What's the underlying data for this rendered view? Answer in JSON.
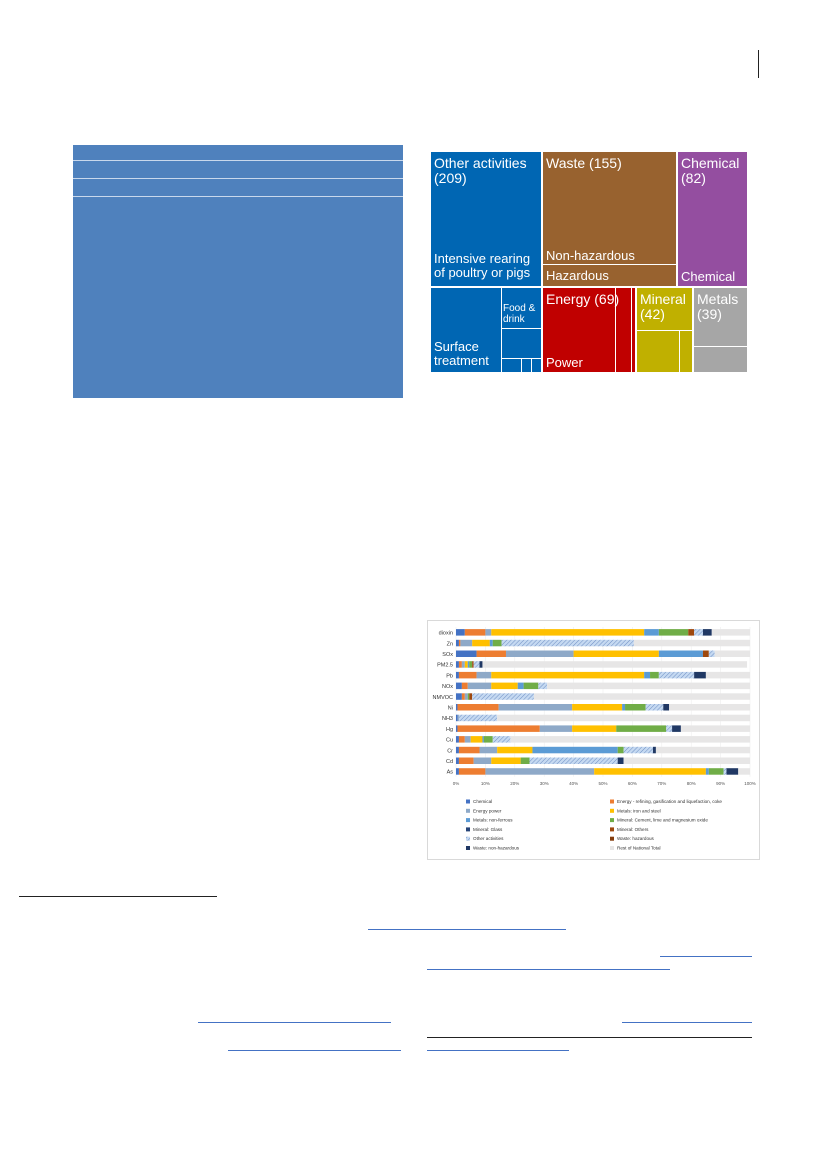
{
  "treemap": {
    "tiles": [
      {
        "id": "other",
        "title": "Other activities\n(209)",
        "sub": "Intensive rearing\nof poultry or pigs",
        "color": "#0066b3"
      },
      {
        "id": "waste",
        "title": "Waste (155)",
        "sub1": "Non-hazardous",
        "sub2": "Hazardous",
        "color": "#98622f"
      },
      {
        "id": "chemical",
        "title": "Chemical\n(82)",
        "sub": "Chemical",
        "color": "#944ea0"
      },
      {
        "id": "surface",
        "title": "",
        "sub": "Surface\ntreatment",
        "food": "Food &\ndrink",
        "color": "#0066b3"
      },
      {
        "id": "energy",
        "title": "Energy (69)",
        "sub": "Power",
        "color": "#c00000"
      },
      {
        "id": "mineral",
        "title": "Mineral\n(42)",
        "color": "#c0b000"
      },
      {
        "id": "metals",
        "title": "Metals\n(39)",
        "color": "#a6a6a6"
      }
    ]
  },
  "chart_data": {
    "type": "bar",
    "orientation": "horizontal",
    "stacked": true,
    "categories": [
      "dioxin",
      "Zn",
      "SOx",
      "PM2.5",
      "Pb",
      "NOx",
      "NMVOC",
      "Ni",
      "NH3",
      "Hg",
      "Cu",
      "Cr",
      "Cd",
      "As"
    ],
    "xticks": [
      "0%",
      "10%",
      "20%",
      "30%",
      "40%",
      "50%",
      "60%",
      "70%",
      "80%",
      "90%",
      "100%"
    ],
    "xlim": [
      0,
      100
    ],
    "legend_position": "bottom",
    "series": [
      {
        "name": "Chemical",
        "color": "#4472c4",
        "values": [
          3,
          1,
          7,
          1,
          1,
          2,
          2,
          0.5,
          0.5,
          0.5,
          1,
          1,
          1,
          1
        ]
      },
      {
        "name": "Energy - refining, gasification and liquefaction, coke",
        "color": "#ed7d31",
        "values": [
          7,
          0.5,
          10,
          1,
          6,
          2,
          1,
          14,
          0,
          28,
          2,
          7,
          5,
          9
        ]
      },
      {
        "name": "Energy power",
        "color": "#8ea9c8",
        "values": [
          2,
          4,
          23,
          1,
          5,
          8,
          1,
          25,
          0.5,
          11,
          2,
          6,
          6,
          37
        ]
      },
      {
        "name": "Metals: iron and steel",
        "color": "#ffc000",
        "values": [
          52,
          6,
          29,
          1,
          52,
          9,
          0,
          17,
          0,
          15,
          4,
          12,
          10,
          38
        ]
      },
      {
        "name": "Metals: non-ferrous",
        "color": "#5b9bd5",
        "values": [
          5,
          1,
          15,
          0.5,
          2,
          2,
          0,
          1,
          0,
          0,
          0.5,
          29,
          0,
          1
        ]
      },
      {
        "name": "Mineral: Cement, lime and magnesium oxide",
        "color": "#70ad47",
        "values": [
          10,
          3,
          0,
          1,
          3,
          5,
          0.5,
          7,
          0,
          17,
          3,
          2,
          3,
          5
        ]
      },
      {
        "name": "Mineral: Glass",
        "color": "#264478",
        "values": [
          0,
          0,
          0,
          0,
          0,
          0,
          0,
          0,
          0,
          0,
          0,
          0,
          0,
          0
        ]
      },
      {
        "name": "Mineral: Others",
        "color": "#9e480e",
        "values": [
          2,
          0,
          2,
          0.5,
          0,
          0,
          1,
          0,
          0,
          0,
          0,
          0,
          0,
          0
        ]
      },
      {
        "name": "Other activities",
        "color": "#a5c3e6",
        "values": [
          3,
          45,
          2,
          2,
          12,
          3,
          21,
          6,
          13,
          2,
          6,
          10,
          30,
          1
        ]
      },
      {
        "name": "Waste: hazardous",
        "color": "#843c0c",
        "values": [
          0,
          0,
          0,
          0,
          0,
          0,
          0,
          0,
          0,
          0,
          0,
          0,
          0,
          0
        ]
      },
      {
        "name": "Waste: non-hazardous",
        "color": "#203864",
        "values": [
          3,
          0,
          0,
          1,
          4,
          0,
          0,
          2,
          0,
          3,
          0,
          1,
          2,
          4
        ]
      },
      {
        "name": "Rest of National Total",
        "color": "#e7e6e6",
        "values": [
          13,
          39.5,
          12,
          90,
          15,
          69,
          73.5,
          27.5,
          86,
          23.5,
          81.5,
          32,
          43,
          4
        ]
      }
    ]
  }
}
